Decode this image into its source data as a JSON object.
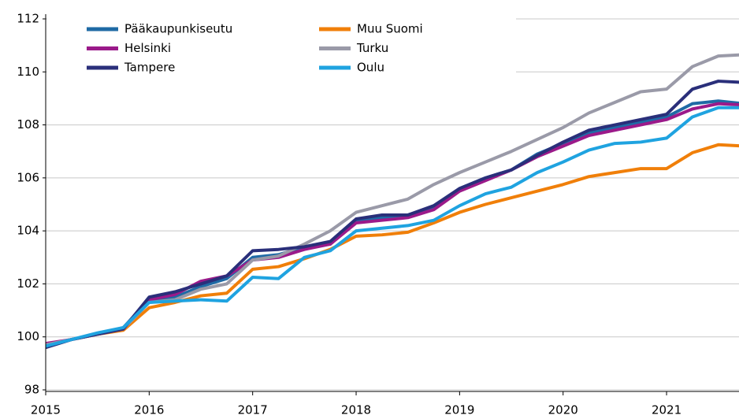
{
  "chart_data": {
    "type": "line",
    "x": [
      2015,
      2015.25,
      2015.5,
      2015.75,
      2016,
      2016.25,
      2016.5,
      2016.75,
      2017,
      2017.25,
      2017.5,
      2017.75,
      2018,
      2018.25,
      2018.5,
      2018.75,
      2019,
      2019.25,
      2019.5,
      2019.75,
      2020,
      2020.25,
      2020.5,
      2020.75,
      2021,
      2021.25,
      2021.5,
      2021.75
    ],
    "xlim": [
      2015,
      2021.7
    ],
    "xticks": [
      2015,
      2016,
      2017,
      2018,
      2019,
      2020,
      2021
    ],
    "ylim": [
      98,
      112
    ],
    "yticks": [
      98,
      100,
      102,
      104,
      106,
      108,
      110,
      112
    ],
    "grid": true,
    "legend": "upper left",
    "series": [
      {
        "name": "Pääkaupunkiseutu",
        "color": "#1f6aa5",
        "values": [
          99.65,
          99.9,
          100.1,
          100.35,
          101.4,
          101.5,
          101.9,
          102.2,
          103.0,
          103.1,
          103.4,
          103.5,
          104.35,
          104.5,
          104.6,
          104.9,
          105.6,
          106.0,
          106.3,
          106.9,
          107.3,
          107.7,
          107.9,
          108.1,
          108.3,
          108.8,
          108.9,
          108.8
        ]
      },
      {
        "name": "Muu Suomi",
        "color": "#f07f09",
        "values": [
          99.7,
          99.9,
          100.1,
          100.25,
          101.1,
          101.3,
          101.55,
          101.65,
          102.55,
          102.65,
          102.95,
          103.3,
          103.8,
          103.85,
          103.95,
          104.3,
          104.7,
          105.0,
          105.25,
          105.5,
          105.75,
          106.05,
          106.2,
          106.35,
          106.35,
          106.95,
          107.25,
          107.2
        ]
      },
      {
        "name": "Helsinki",
        "color": "#9b1a8a",
        "values": [
          99.75,
          99.9,
          100.1,
          100.3,
          101.4,
          101.6,
          102.1,
          102.3,
          102.9,
          103.0,
          103.3,
          103.5,
          104.3,
          104.4,
          104.5,
          104.8,
          105.5,
          105.9,
          106.3,
          106.8,
          107.2,
          107.6,
          107.8,
          108.0,
          108.2,
          108.6,
          108.8,
          108.75
        ]
      },
      {
        "name": "Turku",
        "color": "#9a9aa8",
        "values": [
          99.7,
          99.9,
          100.1,
          100.3,
          101.3,
          101.4,
          101.8,
          102.0,
          102.9,
          103.05,
          103.5,
          104.0,
          104.7,
          104.95,
          105.2,
          105.75,
          106.2,
          106.6,
          107.0,
          107.45,
          107.9,
          108.45,
          108.85,
          109.25,
          109.35,
          110.2,
          110.6,
          110.65
        ]
      },
      {
        "name": "Tampere",
        "color": "#2a2f7a",
        "values": [
          99.6,
          99.9,
          100.1,
          100.3,
          101.5,
          101.7,
          102.0,
          102.3,
          103.25,
          103.3,
          103.4,
          103.6,
          104.45,
          104.6,
          104.6,
          104.95,
          105.6,
          106.0,
          106.3,
          106.85,
          107.35,
          107.8,
          108.0,
          108.2,
          108.4,
          109.35,
          109.65,
          109.6
        ]
      },
      {
        "name": "Oulu",
        "color": "#1fa3e0",
        "values": [
          99.65,
          99.9,
          100.15,
          100.35,
          101.3,
          101.35,
          101.4,
          101.35,
          102.25,
          102.2,
          103.0,
          103.25,
          104.0,
          104.1,
          104.2,
          104.4,
          104.95,
          105.4,
          105.65,
          106.2,
          106.6,
          107.05,
          107.3,
          107.35,
          107.5,
          108.3,
          108.65,
          108.65
        ]
      }
    ]
  }
}
